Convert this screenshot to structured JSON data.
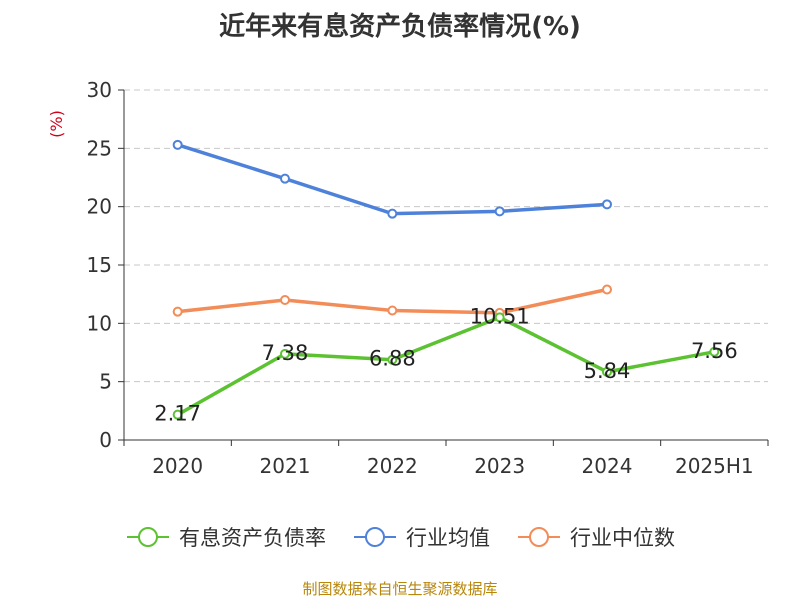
{
  "colors": {
    "company": "#5cc232",
    "industry_avg": "#4e82da",
    "industry_median": "#f28c58",
    "axis": "#333333",
    "grid": "#c8c8c8",
    "unit": "#d0021b",
    "source": "#b8860b"
  },
  "chart_data": {
    "type": "line",
    "title": "近年来有息资产负债率情况(%)",
    "xlabel": "",
    "ylabel": "(%)",
    "categories": [
      "2020",
      "2021",
      "2022",
      "2023",
      "2024",
      "2025H1"
    ],
    "ylim": [
      0,
      30
    ],
    "yticks": [
      0,
      5,
      10,
      15,
      20,
      25,
      30
    ],
    "grid": true,
    "legend_position": "bottom",
    "series": [
      {
        "name": "有息资产负债率",
        "color_key": "company",
        "values": [
          2.17,
          7.38,
          6.88,
          10.51,
          5.84,
          7.56
        ],
        "labels": [
          "2.17",
          "7.38",
          "6.88",
          "10.51",
          "5.84",
          "7.56"
        ]
      },
      {
        "name": "行业均值",
        "color_key": "industry_avg",
        "values": [
          25.3,
          22.4,
          19.4,
          19.6,
          20.2,
          null
        ]
      },
      {
        "name": "行业中位数",
        "color_key": "industry_median",
        "values": [
          11.0,
          12.0,
          11.1,
          10.9,
          12.9,
          null
        ]
      }
    ]
  },
  "source_note": "制图数据来自恒生聚源数据库"
}
